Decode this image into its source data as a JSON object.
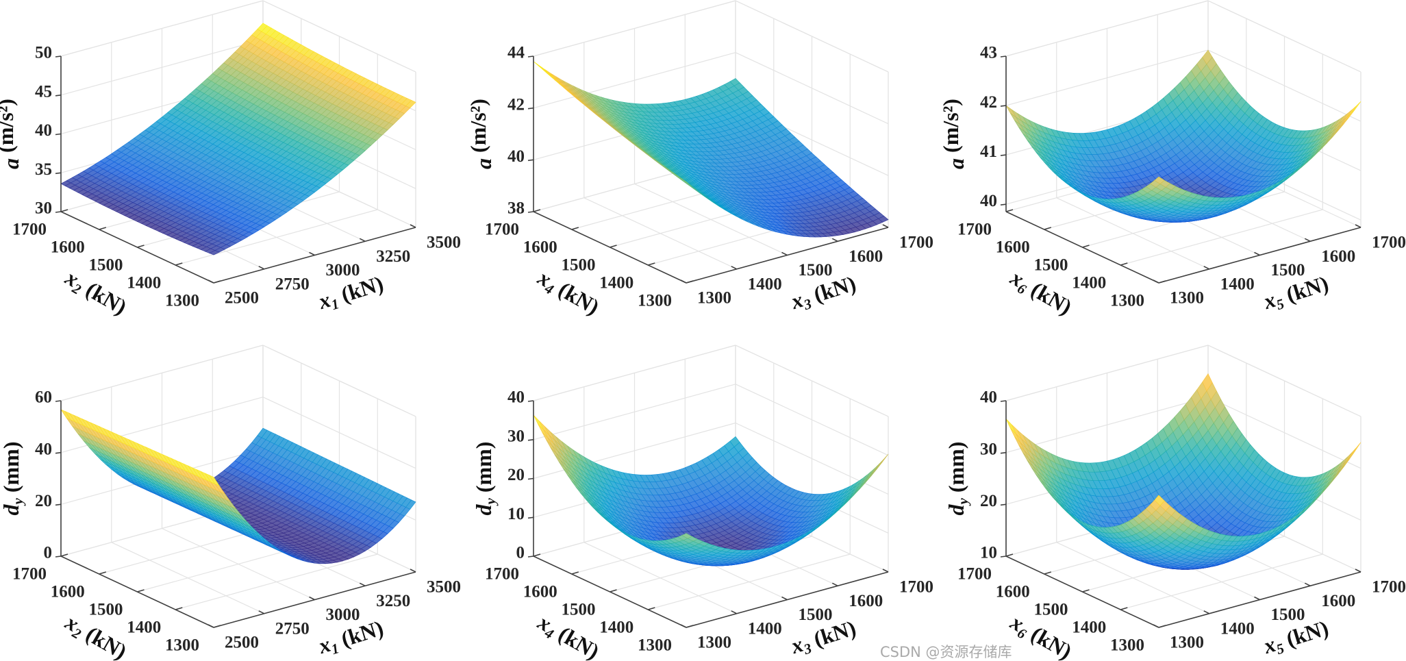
{
  "watermark": "CSDN @资源存储库",
  "chart_data": [
    {
      "type": "surface",
      "colormap": "parula",
      "grid": true,
      "xlabel": {
        "var": "x",
        "sub": "1",
        "unit": " (kN)"
      },
      "ylabel": {
        "var": "x",
        "sub": "2",
        "unit": " (kN)"
      },
      "zlabel": {
        "var": "a",
        "sub": "",
        "unit": " (m/s²)"
      },
      "xlim": [
        2500,
        3500
      ],
      "ylim": [
        1300,
        1700
      ],
      "zlim": [
        30,
        50
      ],
      "x_ticks": [
        "2500",
        "2750",
        "3000",
        "3250",
        "3500"
      ],
      "y_ticks": [
        "1300",
        "1400",
        "1500",
        "1600",
        "1700"
      ],
      "z_ticks": [
        "30",
        "35",
        "40",
        "45",
        "50"
      ],
      "grid_x": [
        2500,
        3000,
        3500
      ],
      "grid_y": [
        1300,
        1500,
        1700
      ],
      "z": [
        [
          33.6,
          38.1,
          46.1
        ],
        [
          33.3,
          38.05,
          46.3
        ],
        [
          33.6,
          38.6,
          47.1
        ]
      ]
    },
    {
      "type": "surface",
      "colormap": "parula",
      "grid": true,
      "xlabel": {
        "var": "x",
        "sub": "3",
        "unit": " (kN)"
      },
      "ylabel": {
        "var": "x",
        "sub": "4",
        "unit": " (kN)"
      },
      "zlabel": {
        "var": "a",
        "sub": "",
        "unit": " (m/s²)"
      },
      "xlim": [
        1300,
        1700
      ],
      "ylim": [
        1300,
        1700
      ],
      "zlim": [
        38,
        44
      ],
      "x_ticks": [
        "1300",
        "1400",
        "1500",
        "1600",
        "1700"
      ],
      "y_ticks": [
        "1300",
        "1400",
        "1500",
        "1600",
        "1700"
      ],
      "z_ticks": [
        "38",
        "40",
        "42",
        "44"
      ],
      "grid_x": [
        1300,
        1500,
        1700
      ],
      "grid_y": [
        1300,
        1500,
        1700
      ],
      "z": [
        [
          41.9,
          38.8,
          38.3
        ],
        [
          42.7,
          39.8,
          39.5
        ],
        [
          43.8,
          41.1,
          41.0
        ]
      ]
    },
    {
      "type": "surface",
      "colormap": "parula",
      "grid": true,
      "xlabel": {
        "var": "x",
        "sub": "5",
        "unit": " (kN)"
      },
      "ylabel": {
        "var": "x",
        "sub": "6",
        "unit": " (kN)"
      },
      "zlabel": {
        "var": "a",
        "sub": "",
        "unit": " (m/s²)"
      },
      "xlim": [
        1300,
        1700
      ],
      "ylim": [
        1300,
        1700
      ],
      "zlim": [
        39.85,
        43
      ],
      "x_ticks": [
        "1300",
        "1400",
        "1500",
        "1600",
        "1700"
      ],
      "y_ticks": [
        "1300",
        "1400",
        "1500",
        "1600",
        "1700"
      ],
      "z_ticks": [
        "40",
        "41",
        "42",
        "43"
      ],
      "grid_x": [
        1300,
        1500,
        1700
      ],
      "grid_y": [
        1300,
        1500,
        1700
      ],
      "z": [
        [
          42.0,
          41.15,
          42.4
        ],
        [
          40.95,
          40.0,
          41.15
        ],
        [
          42.0,
          40.95,
          42.0
        ]
      ]
    },
    {
      "type": "surface",
      "colormap": "parula",
      "grid": true,
      "xlabel": {
        "var": "x",
        "sub": "1",
        "unit": " (kN)"
      },
      "ylabel": {
        "var": "x",
        "sub": "2",
        "unit": " (kN)"
      },
      "zlabel": {
        "var": "d",
        "sub": "y",
        "unit": " (mm)"
      },
      "xlim": [
        2500,
        3500
      ],
      "ylim": [
        1300,
        1700
      ],
      "zlim": [
        0,
        60
      ],
      "x_ticks": [
        "2500",
        "2750",
        "3000",
        "3250",
        "3500"
      ],
      "y_ticks": [
        "1300",
        "1400",
        "1500",
        "1600",
        "1700"
      ],
      "z_ticks": [
        "0",
        "20",
        "40",
        "60"
      ],
      "grid_x": [
        2500,
        3000,
        3500
      ],
      "grid_y": [
        1300,
        1500,
        1700
      ],
      "z": [
        [
          58.0,
          14.1,
          27.0
        ],
        [
          57.3,
          14.0,
          27.5
        ],
        [
          56.6,
          13.9,
          28.0
        ]
      ]
    },
    {
      "type": "surface",
      "colormap": "parula",
      "grid": true,
      "xlabel": {
        "var": "x",
        "sub": "3",
        "unit": " (kN)"
      },
      "ylabel": {
        "var": "x",
        "sub": "4",
        "unit": " (kN)"
      },
      "zlabel": {
        "var": "d",
        "sub": "y",
        "unit": " (mm)"
      },
      "xlim": [
        1300,
        1700
      ],
      "ylim": [
        1300,
        1700
      ],
      "zlim": [
        0,
        40
      ],
      "x_ticks": [
        "1300",
        "1400",
        "1500",
        "1600",
        "1700"
      ],
      "y_ticks": [
        "1300",
        "1400",
        "1500",
        "1600",
        "1700"
      ],
      "z_ticks": [
        "0",
        "10",
        "20",
        "30",
        "40"
      ],
      "grid_x": [
        1300,
        1500,
        1700
      ],
      "grid_y": [
        1300,
        1500,
        1700
      ],
      "z": [
        [
          24.2,
          14.75,
          30.3
        ],
        [
          17.75,
          1.83,
          10.9
        ],
        [
          36.3,
          13.9,
          16.5
        ]
      ]
    },
    {
      "type": "surface",
      "colormap": "parula",
      "grid": true,
      "xlabel": {
        "var": "x",
        "sub": "5",
        "unit": " (kN)"
      },
      "ylabel": {
        "var": "x",
        "sub": "6",
        "unit": " (kN)"
      },
      "zlabel": {
        "var": "d",
        "sub": "y",
        "unit": " (mm)"
      },
      "xlim": [
        1300,
        1700
      ],
      "ylim": [
        1300,
        1700
      ],
      "zlim": [
        10,
        40
      ],
      "x_ticks": [
        "1300",
        "1400",
        "1500",
        "1600",
        "1700"
      ],
      "y_ticks": [
        "1300",
        "1400",
        "1500",
        "1600",
        "1700"
      ],
      "z_ticks": [
        "10",
        "20",
        "30",
        "40"
      ],
      "grid_x": [
        1300,
        1500,
        1700
      ],
      "grid_y": [
        1300,
        1500,
        1700
      ],
      "z": [
        [
          35.5,
          22.75,
          35.0
        ],
        [
          23.5,
          10.4,
          22.25
        ],
        [
          36.5,
          23.0,
          34.5
        ]
      ]
    }
  ]
}
